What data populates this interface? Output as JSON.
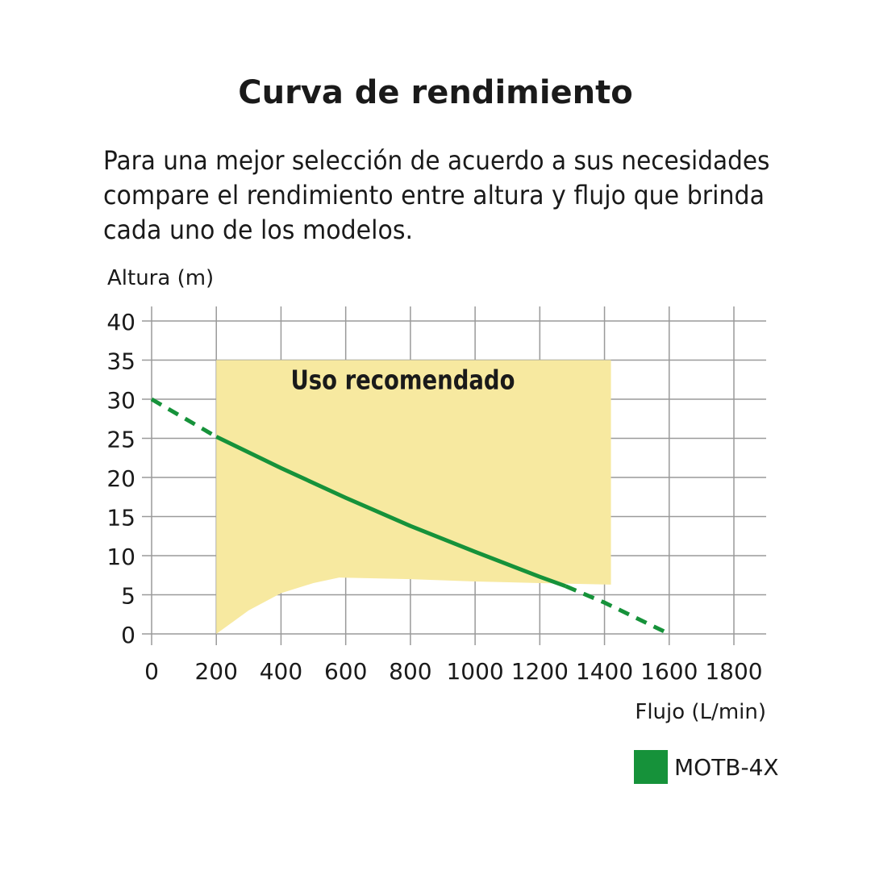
{
  "page": {
    "title": "Curva de rendimiento",
    "description_lines": [
      "Para una mejor selección de acuerdo a sus necesidades",
      "compare el rendimiento entre altura y flujo que brinda",
      "cada uno de los modelos."
    ]
  },
  "chart_data": {
    "type": "line",
    "title": "",
    "xlabel": "Flujo (L/min)",
    "ylabel": "Altura (m)",
    "xlim": [
      0,
      1800
    ],
    "ylim": [
      0,
      40
    ],
    "x_ticks": [
      0,
      200,
      400,
      600,
      800,
      1000,
      1200,
      1400,
      1600,
      1800
    ],
    "y_ticks": [
      0,
      5,
      10,
      15,
      20,
      25,
      30,
      35,
      40
    ],
    "grid": true,
    "legend_position": "bottom-right",
    "recommended_region": {
      "label": "Uso recomendado",
      "color": "#f7e9a0",
      "top": [
        [
          200,
          35
        ],
        [
          1420,
          35
        ]
      ],
      "bottom": [
        [
          200,
          0
        ],
        [
          300,
          3
        ],
        [
          400,
          5.2
        ],
        [
          500,
          6.5
        ],
        [
          580,
          7.2
        ],
        [
          800,
          7
        ],
        [
          1000,
          6.7
        ],
        [
          1200,
          6.5
        ],
        [
          1420,
          6.3
        ]
      ]
    },
    "series": [
      {
        "name": "MOTB-4X",
        "color": "#16923a",
        "x": [
          0,
          200,
          400,
          600,
          800,
          1000,
          1200,
          1280,
          1400,
          1600
        ],
        "y": [
          30,
          25.2,
          21.2,
          17.4,
          13.8,
          10.5,
          7.3,
          6.1,
          4.0,
          0
        ],
        "solid_range": [
          200,
          1280
        ]
      }
    ]
  }
}
